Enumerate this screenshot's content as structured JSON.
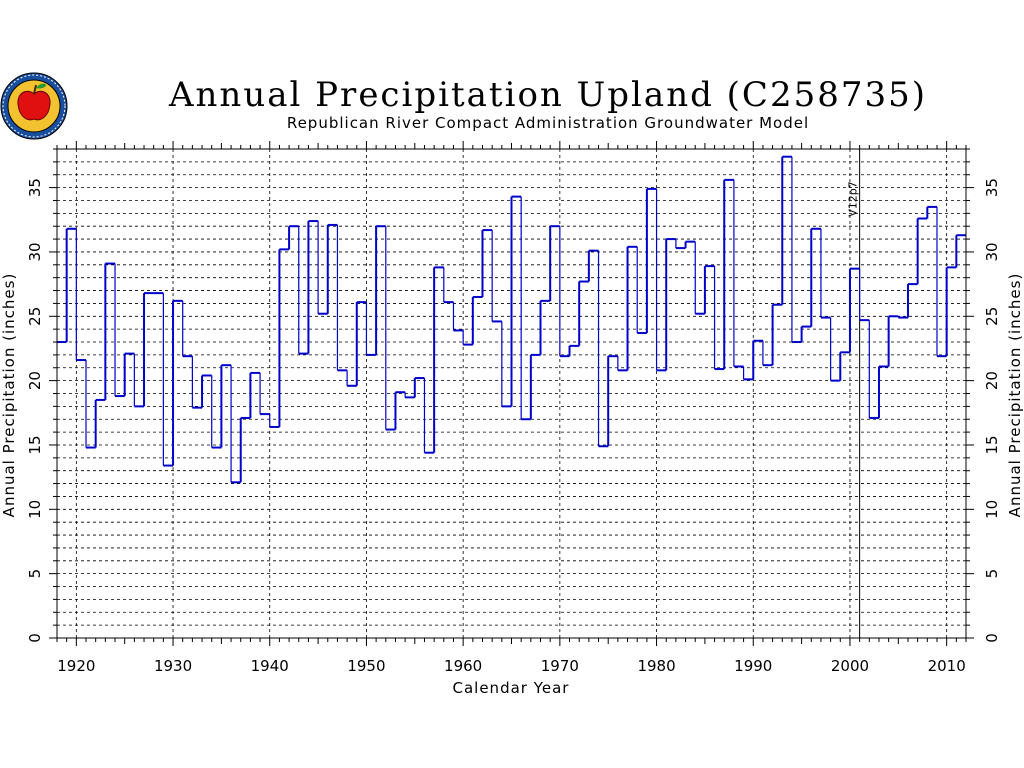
{
  "logo": {
    "icon": "apple-seal-icon"
  },
  "chart_data": {
    "type": "line",
    "style": "step",
    "title": "Annual Precipitation Upland (C258735)",
    "subtitle": "Republican River Compact Administration Groundwater Model",
    "xlabel": "Calendar Year",
    "ylabel": "Annual Precipitation (inches)",
    "ylabel_right": "Annual Precipitation (inches)",
    "xlim": [
      1918,
      2012
    ],
    "ylim": [
      0,
      38
    ],
    "x_ticks": [
      "1920",
      "1930",
      "1940",
      "1950",
      "1960",
      "1970",
      "1980",
      "1990",
      "2000",
      "2010"
    ],
    "y_ticks": [
      "0",
      "5",
      "10",
      "15",
      "20",
      "25",
      "30",
      "35"
    ],
    "grid": {
      "vertical_major_step": 10,
      "horizontal_step": 1
    },
    "line_color": "#0000cc",
    "marker": {
      "x": 2001,
      "label": "V12p7"
    },
    "series": [
      {
        "x_start": 1918,
        "values": [
          23.0,
          31.8,
          21.6,
          14.8,
          18.5,
          29.1,
          18.8,
          22.1,
          18.0,
          26.8,
          26.8,
          13.4,
          26.2,
          21.9,
          17.9,
          20.4,
          14.8,
          21.2,
          12.1,
          17.1,
          20.6,
          17.4,
          16.4,
          30.2,
          32.0,
          22.1,
          32.4,
          25.2,
          32.1,
          20.8,
          19.6,
          26.1,
          22.0,
          32.0,
          16.2,
          19.1,
          18.7,
          20.2,
          14.4,
          28.8,
          26.1,
          23.9,
          22.8,
          26.5,
          31.7,
          24.6,
          18.0,
          34.3,
          17.0,
          22.0,
          26.2,
          32.0,
          21.9,
          22.7,
          27.7,
          30.1,
          14.9,
          21.9,
          20.8,
          30.4,
          23.7,
          34.9,
          20.8,
          31.0,
          30.3,
          30.8,
          25.2,
          28.9,
          20.9,
          35.6,
          21.1,
          20.1,
          23.1,
          21.2,
          25.9,
          37.4,
          23.0,
          24.2,
          31.8,
          24.9,
          20.0,
          22.2,
          28.7,
          24.7,
          17.1,
          21.1,
          25.0,
          24.9,
          27.5,
          32.6,
          33.5,
          21.9,
          28.8,
          31.3
        ]
      }
    ]
  }
}
